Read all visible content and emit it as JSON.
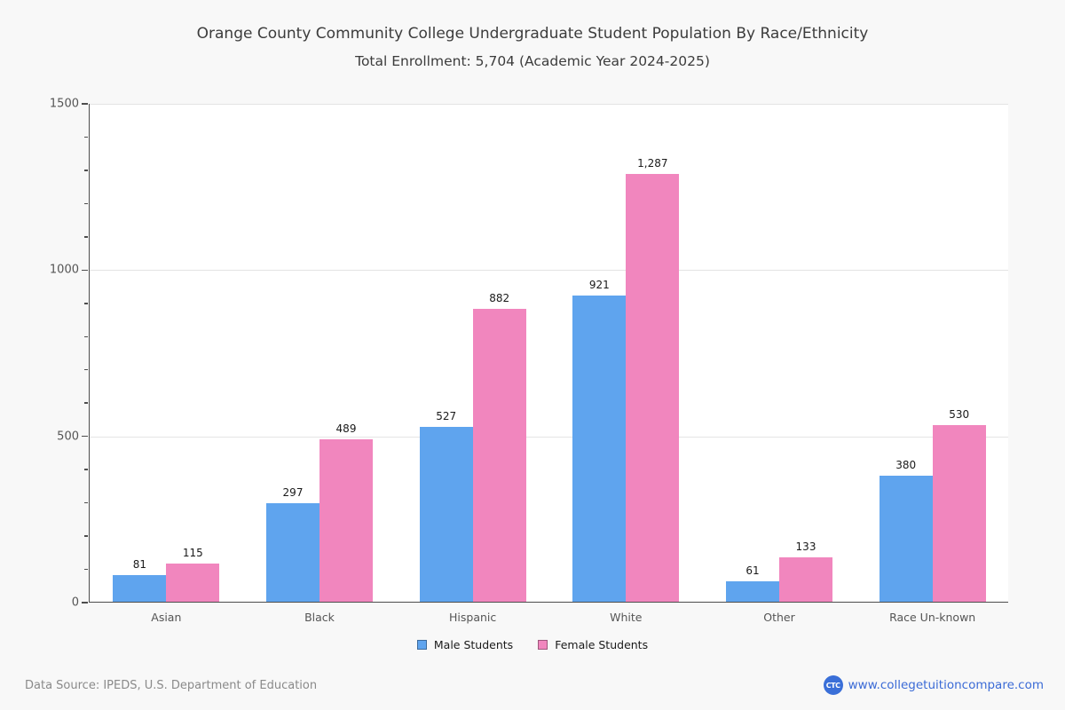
{
  "title": "Orange County Community College Undergraduate Student Population By Race/Ethnicity",
  "subtitle": "Total Enrollment: 5,704 (Academic Year 2024-2025)",
  "chart_data": {
    "type": "bar",
    "categories": [
      "Asian",
      "Black",
      "Hispanic",
      "White",
      "Other",
      "Race Un-known"
    ],
    "series": [
      {
        "name": "Male Students",
        "color": "#5fa4ee",
        "values": [
          81,
          297,
          527,
          921,
          61,
          380
        ]
      },
      {
        "name": "Female Students",
        "color": "#f186be",
        "values": [
          115,
          489,
          882,
          1287,
          133,
          530
        ]
      }
    ],
    "ylim": [
      0,
      1500
    ],
    "y_major_step": 500,
    "y_minor_step": 100,
    "grid": true,
    "legend_position": "bottom",
    "value_labels_shown": true
  },
  "footer": {
    "source": "Data Source: IPEDS, U.S. Department of Education",
    "logo_text": "CTC",
    "site_label": "www.collegetuitioncompare.com"
  },
  "colors": {
    "male": "#5fa4ee",
    "female": "#f186be",
    "background": "#f8f8f8",
    "plot_background": "#ffffff",
    "gridline": "#e4e4e4",
    "axis": "#4d4d4d",
    "link_blue": "#3b6bd6",
    "badge_blue": "#3a6fd8"
  }
}
